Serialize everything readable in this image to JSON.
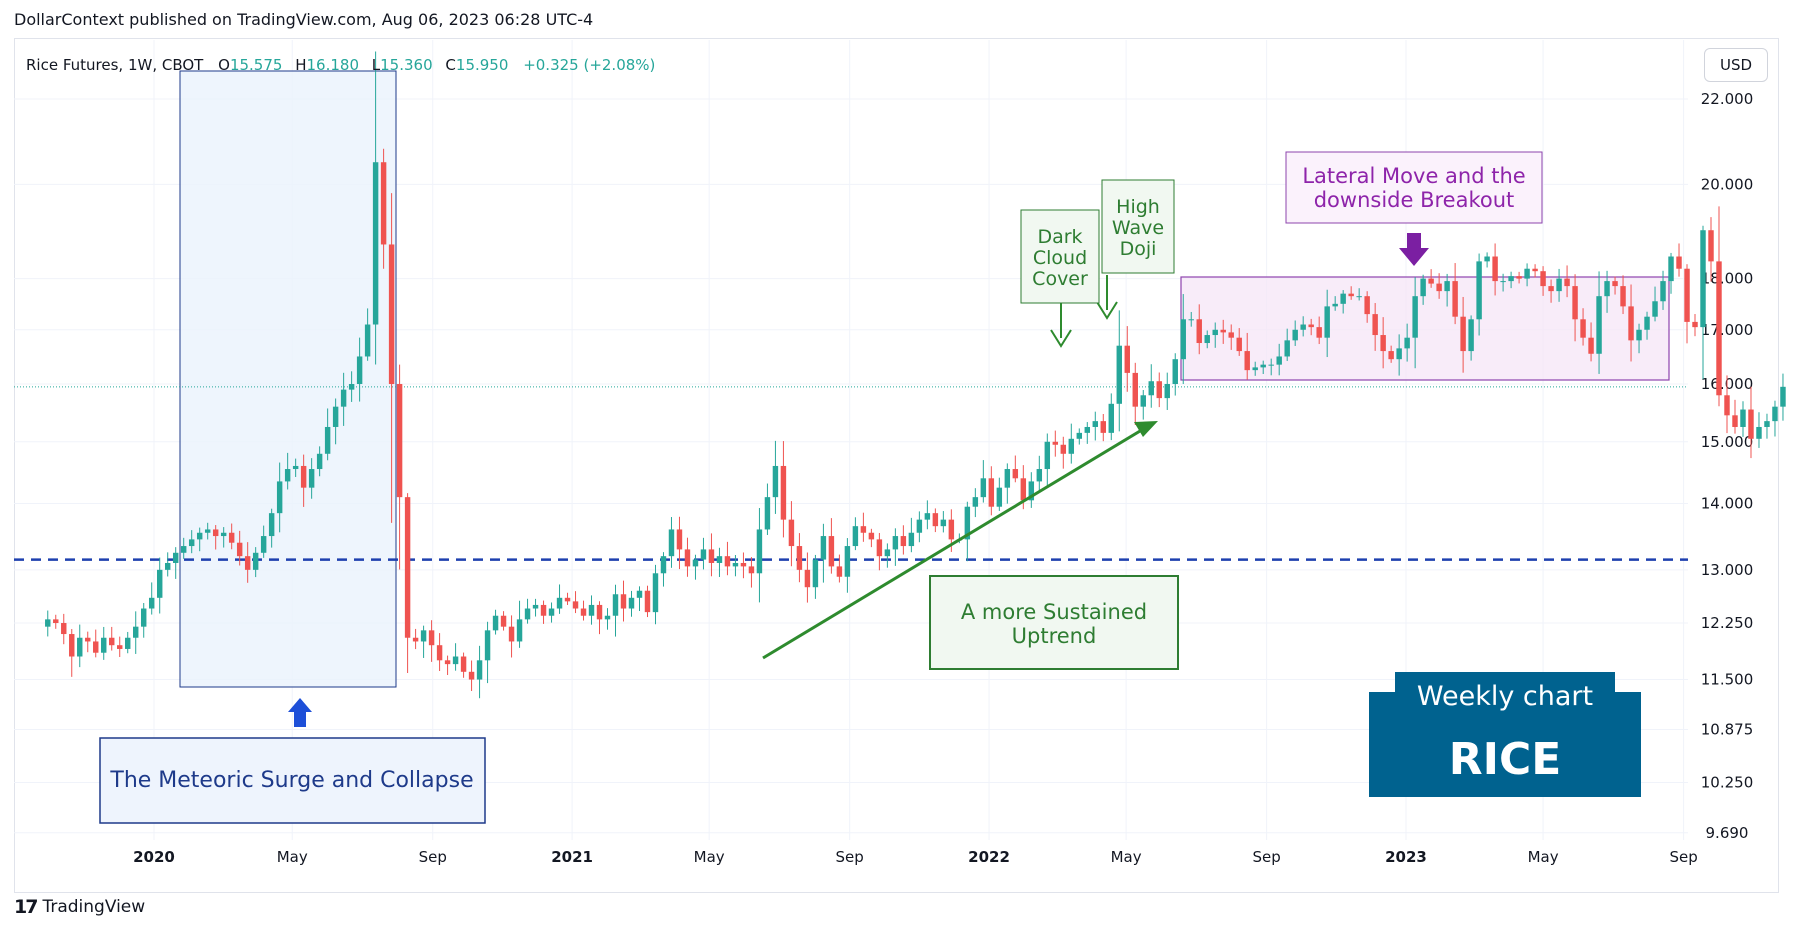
{
  "header": "DollarContext published on TradingView.com, Aug 06, 2023 06:28 UTC-4",
  "currency_button": "USD",
  "footer_brand": "TradingView",
  "legend": {
    "symbol": "Rice Futures, 1W, CBOT",
    "o_label": "O",
    "o": "15.575",
    "h_label": "H",
    "h": "16.180",
    "l_label": "L",
    "l": "15.360",
    "c_label": "C",
    "c": "15.950",
    "change": "+0.325 (+2.08%)"
  },
  "colors": {
    "up": "#26a69a",
    "down": "#ef5350",
    "grid": "#f0f3fa",
    "green_note": "#2e7d32",
    "purple_note": "#7b1fa2",
    "blue_note": "#1e3a8a",
    "dashed": "#1e40af",
    "badge": "#00628f"
  },
  "annotations": {
    "meteoric": "The Meteoric Surge and Collapse",
    "dark_cloud": [
      "Dark",
      "Cloud",
      "Cover"
    ],
    "high_wave": [
      "High",
      "Wave",
      "Doji"
    ],
    "lateral": [
      "Lateral Move and the",
      "downside Breakout"
    ],
    "sustained": [
      "A more Sustained",
      "Uptrend"
    ],
    "badge_top": "Weekly chart",
    "badge_main": "RICE"
  },
  "chart_data": {
    "type": "candlestick",
    "title": "Rice Futures, 1W, CBOT",
    "scale": "log",
    "ylim": [
      9.4,
      23.5
    ],
    "y_ticks": [
      "22.000",
      "20.000",
      "18.000",
      "17.000",
      "16.000",
      "15.000",
      "14.000",
      "13.000",
      "12.250",
      "11.500",
      "10.875",
      "10.250",
      "9.690"
    ],
    "x_ticks": [
      {
        "label": "2020",
        "date": "2020-01-01",
        "bold": true
      },
      {
        "label": "May",
        "date": "2020-05-01",
        "bold": false
      },
      {
        "label": "Sep",
        "date": "2020-09-01",
        "bold": false
      },
      {
        "label": "2021",
        "date": "2021-01-01",
        "bold": true
      },
      {
        "label": "May",
        "date": "2021-05-01",
        "bold": false
      },
      {
        "label": "Sep",
        "date": "2021-09-01",
        "bold": false
      },
      {
        "label": "2022",
        "date": "2022-01-01",
        "bold": true
      },
      {
        "label": "May",
        "date": "2022-05-01",
        "bold": false
      },
      {
        "label": "Sep",
        "date": "2022-09-01",
        "bold": false
      },
      {
        "label": "2023",
        "date": "2023-01-01",
        "bold": true
      },
      {
        "label": "May",
        "date": "2023-05-01",
        "bold": false
      },
      {
        "label": "Sep",
        "date": "2023-09-01",
        "bold": false
      }
    ],
    "first_candle_date": "2019-09-23",
    "last_close_line": 15.95,
    "support_level": 13.15,
    "closes": [
      12.2,
      12.3,
      12.25,
      12.1,
      11.8,
      12.05,
      12.0,
      11.85,
      12.05,
      11.95,
      11.9,
      12.05,
      12.2,
      12.45,
      12.6,
      13.0,
      13.1,
      13.25,
      13.35,
      13.45,
      13.55,
      13.6,
      13.5,
      13.55,
      13.4,
      13.2,
      13.0,
      13.25,
      13.5,
      13.85,
      14.35,
      14.55,
      14.6,
      14.25,
      14.55,
      14.8,
      15.25,
      15.6,
      15.9,
      16.0,
      16.5,
      17.1,
      20.5,
      18.7,
      16.0,
      14.1,
      12.05,
      12.0,
      12.15,
      11.95,
      11.75,
      11.7,
      11.8,
      11.6,
      11.5,
      11.75,
      12.15,
      12.35,
      12.2,
      12.0,
      12.3,
      12.45,
      12.5,
      12.35,
      12.45,
      12.6,
      12.55,
      12.45,
      12.35,
      12.5,
      12.3,
      12.35,
      12.65,
      12.45,
      12.6,
      12.7,
      12.4,
      12.95,
      13.2,
      13.6,
      13.3,
      13.05,
      13.15,
      13.3,
      13.1,
      13.2,
      13.05,
      13.1,
      13.05,
      12.95,
      13.6,
      14.1,
      14.6,
      13.75,
      13.35,
      13.0,
      12.75,
      13.15,
      13.5,
      13.05,
      12.9,
      13.35,
      13.65,
      13.55,
      13.45,
      13.2,
      13.3,
      13.5,
      13.35,
      13.55,
      13.75,
      13.85,
      13.65,
      13.75,
      13.45,
      13.45,
      13.95,
      14.1,
      14.4,
      13.95,
      14.25,
      14.55,
      14.4,
      14.05,
      14.35,
      14.55,
      15.0,
      14.95,
      14.8,
      15.05,
      15.15,
      15.25,
      15.35,
      15.15,
      15.65,
      16.7,
      16.2,
      15.6,
      15.8,
      16.05,
      15.75,
      16.0,
      16.45,
      17.2,
      17.2,
      16.75,
      16.9,
      17.0,
      16.95,
      16.85,
      16.6,
      16.25,
      16.3,
      16.35,
      16.35,
      16.5,
      16.8,
      17.0,
      17.1,
      17.05,
      16.85,
      17.45,
      17.5,
      17.7,
      17.65,
      17.65,
      17.3,
      16.9,
      16.6,
      16.45,
      16.65,
      16.85,
      17.65,
      18.0,
      17.9,
      17.75,
      17.95,
      17.25,
      16.6,
      17.2,
      18.35,
      18.45,
      17.95,
      17.95,
      18.05,
      18.0,
      18.2,
      18.15,
      17.85,
      17.75,
      18.0,
      17.85,
      17.2,
      16.85,
      16.55,
      17.65,
      17.95,
      17.85,
      17.45,
      16.8,
      17.0,
      17.25,
      17.55,
      17.95,
      18.45,
      18.2,
      17.15,
      17.05,
      19.0,
      18.35,
      15.8,
      15.45,
      15.25,
      15.55,
      15.05,
      15.25,
      15.35,
      15.6,
      15.95
    ]
  }
}
